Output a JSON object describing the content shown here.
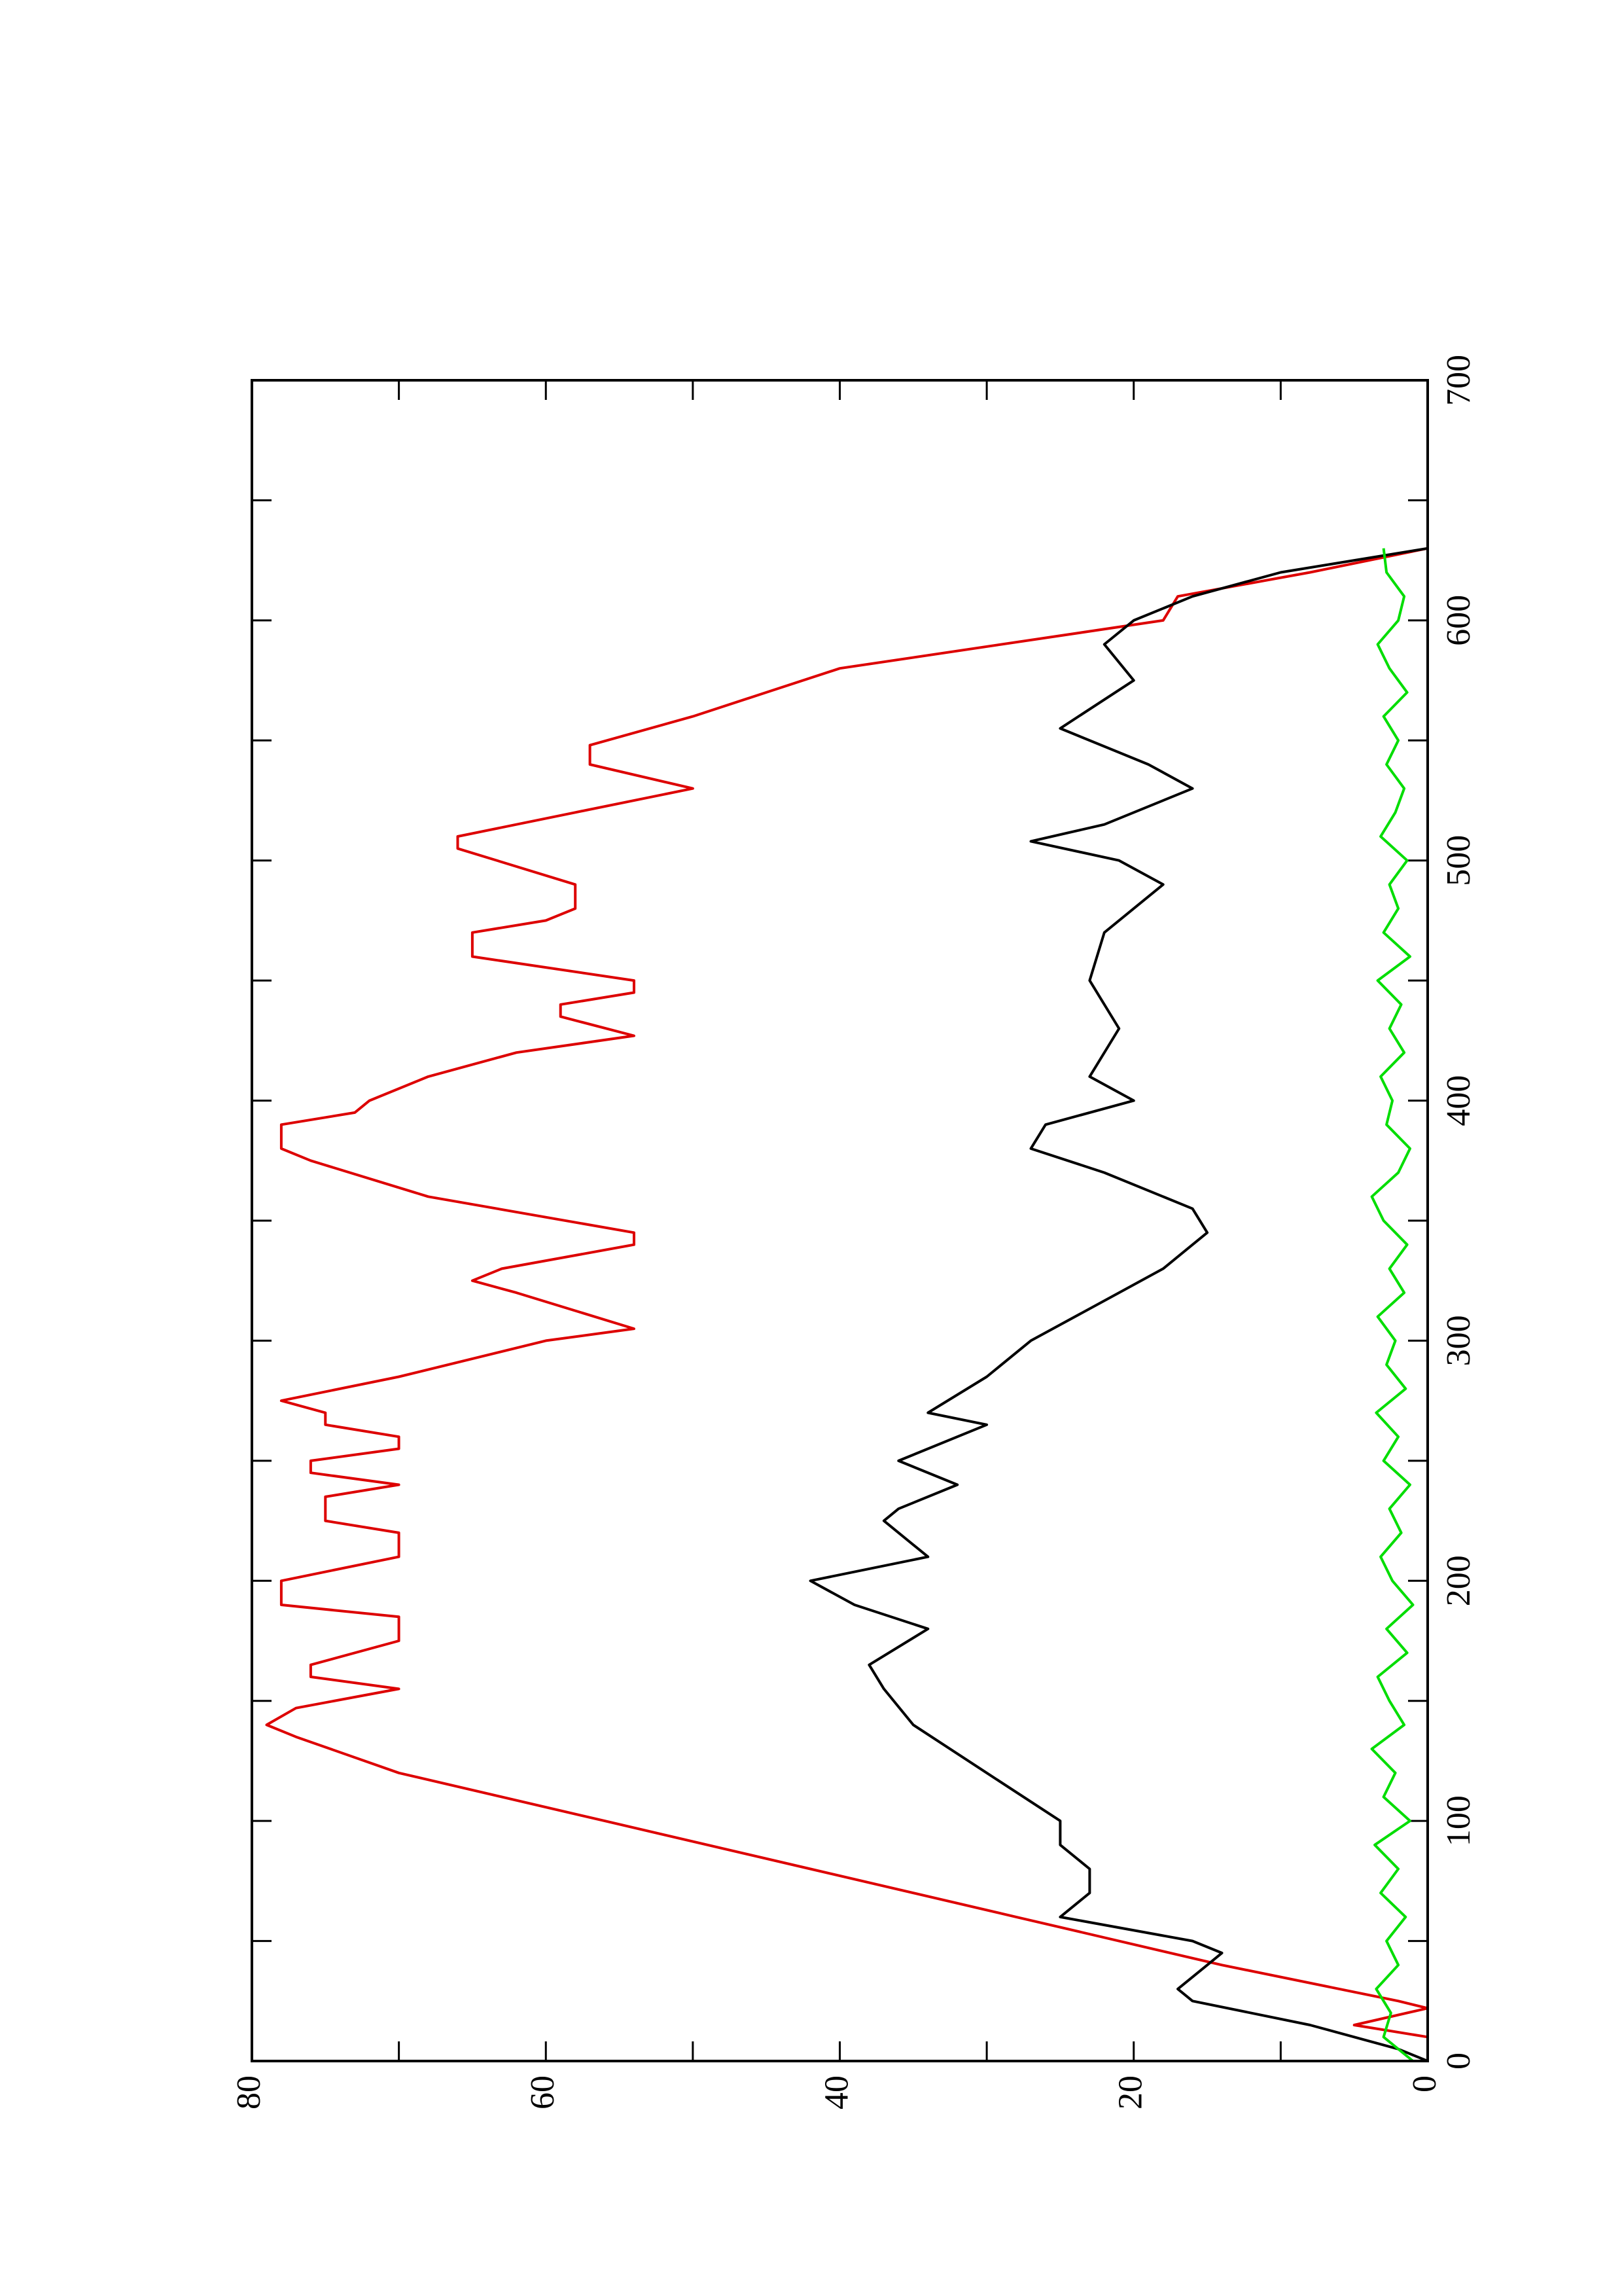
{
  "chart_data": {
    "type": "line",
    "orientation": "rotated",
    "xlim": [
      0,
      700
    ],
    "xticks": [
      0,
      100,
      200,
      300,
      400,
      500,
      600,
      700
    ],
    "xticks_minor": [
      50,
      150,
      250,
      350,
      450,
      550,
      650
    ],
    "ylim": [
      0,
      80
    ],
    "yticks": [
      0,
      20,
      40,
      60,
      80
    ],
    "yticks_minor": [
      10,
      30,
      50,
      70
    ],
    "series": [
      {
        "color": "#dd0000",
        "x": [
          10,
          15,
          22,
          25,
          40,
          60,
          80,
          100,
          120,
          135,
          140,
          147,
          155,
          160,
          165,
          175,
          185,
          190,
          200,
          210,
          220,
          225,
          235,
          240,
          245,
          250,
          255,
          260,
          265,
          270,
          275,
          285,
          300,
          305,
          320,
          325,
          330,
          340,
          345,
          360,
          375,
          380,
          390,
          395,
          400,
          410,
          420,
          427,
          435,
          440,
          445,
          450,
          460,
          470,
          475,
          480,
          490,
          505,
          510,
          520,
          530,
          540,
          548,
          560,
          570,
          580,
          600,
          610,
          620,
          630
        ],
        "values": [
          0,
          5,
          0,
          2,
          14,
          28,
          42,
          56,
          70,
          77,
          79,
          77,
          70,
          76,
          76,
          70,
          70,
          78,
          78,
          70,
          70,
          75,
          75,
          70,
          76,
          76,
          70,
          70,
          75,
          75,
          78,
          70,
          60,
          54,
          62,
          65,
          63,
          54,
          54,
          68,
          76,
          78,
          78,
          73,
          72,
          68,
          62,
          54,
          59,
          59,
          54,
          54,
          65,
          65,
          60,
          58,
          58,
          66,
          66,
          58,
          50,
          57,
          57,
          50,
          45,
          40,
          18,
          17,
          8,
          0
        ]
      },
      {
        "color": "#000000",
        "x": [
          0,
          5,
          15,
          25,
          30,
          40,
          45,
          50,
          60,
          70,
          80,
          90,
          100,
          120,
          140,
          155,
          165,
          180,
          190,
          200,
          210,
          225,
          230,
          240,
          250,
          265,
          270,
          285,
          300,
          320,
          330,
          345,
          355,
          370,
          380,
          390,
          400,
          410,
          430,
          450,
          470,
          480,
          490,
          500,
          508,
          515,
          530,
          540,
          555,
          575,
          590,
          600,
          610,
          620,
          630
        ],
        "values": [
          0,
          2,
          8,
          16,
          17,
          15,
          14,
          16,
          25,
          23,
          23,
          25,
          25,
          30,
          35,
          37,
          38,
          34,
          39,
          42,
          34,
          37,
          36,
          32,
          36,
          30,
          34,
          30,
          27,
          21,
          18,
          15,
          16,
          22,
          27,
          26,
          20,
          23,
          21,
          23,
          22,
          20,
          18,
          21,
          27,
          22,
          16,
          19,
          25,
          20,
          22,
          20,
          16,
          10,
          0
        ]
      },
      {
        "color": "#00dd00",
        "x": [
          0,
          10,
          20,
          30,
          40,
          50,
          60,
          70,
          80,
          90,
          100,
          110,
          120,
          130,
          140,
          150,
          160,
          170,
          180,
          190,
          200,
          210,
          220,
          230,
          240,
          250,
          260,
          270,
          280,
          290,
          300,
          310,
          320,
          330,
          340,
          350,
          360,
          370,
          380,
          390,
          400,
          410,
          420,
          430,
          440,
          450,
          460,
          470,
          480,
          490,
          500,
          510,
          520,
          530,
          540,
          550,
          560,
          570,
          580,
          590,
          600,
          610,
          620,
          630
        ],
        "values": [
          1,
          3,
          2.5,
          3.5,
          2,
          2.8,
          1.5,
          3.2,
          2,
          3.6,
          1.2,
          3,
          2.2,
          3.8,
          1.6,
          2.6,
          3.4,
          1.4,
          2.8,
          1,
          2.4,
          3.2,
          1.8,
          2.6,
          1.2,
          3,
          2,
          3.5,
          1.5,
          2.8,
          2.2,
          3.4,
          1.6,
          2.6,
          1.4,
          3,
          3.8,
          2,
          1.2,
          2.8,
          2.4,
          3.2,
          1.6,
          2.6,
          1.8,
          3.4,
          1.2,
          3,
          2,
          2.6,
          1.4,
          3.2,
          2.2,
          1.6,
          2.8,
          2,
          3,
          1.4,
          2.6,
          3.4,
          2,
          1.6,
          2.8,
          3
        ]
      }
    ]
  }
}
